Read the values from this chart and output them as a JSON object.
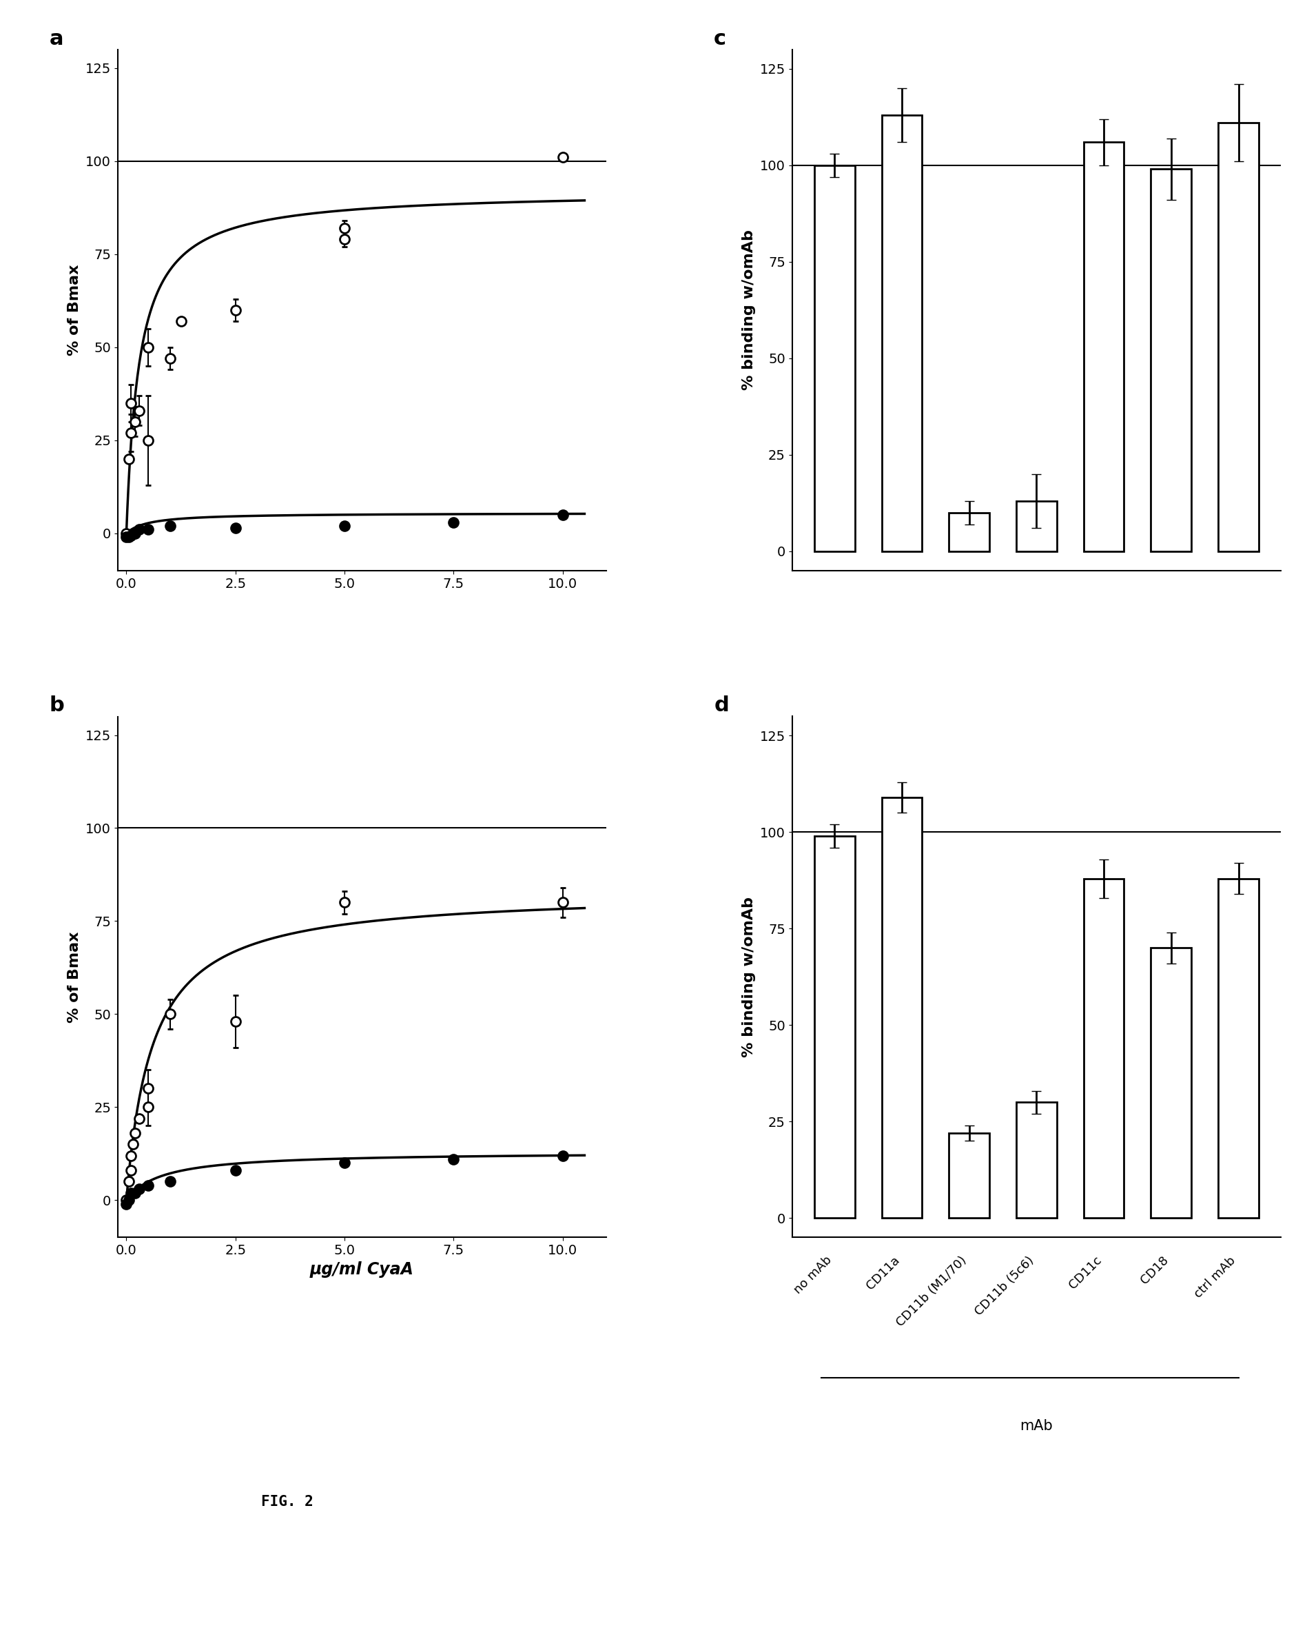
{
  "panel_a": {
    "label": "a",
    "open_x": [
      0.0,
      0.05,
      0.1,
      0.1,
      0.2,
      0.3,
      0.5,
      0.5,
      1.0,
      1.25,
      2.5,
      5.0,
      5.0,
      10.0
    ],
    "open_y": [
      0,
      20,
      27,
      35,
      30,
      33,
      25,
      50,
      47,
      57,
      60,
      82,
      79,
      101
    ],
    "open_yerr": [
      0,
      0,
      5,
      5,
      4,
      4,
      12,
      5,
      3,
      0,
      3,
      2,
      2,
      0
    ],
    "filled_x": [
      0.0,
      0.05,
      0.1,
      0.2,
      0.3,
      0.5,
      1.0,
      2.5,
      5.0,
      7.5,
      10.0
    ],
    "filled_y": [
      -1,
      -1,
      -0.5,
      0,
      1,
      1,
      2,
      1.5,
      2,
      3,
      5
    ],
    "filled_yerr": [
      0,
      0,
      0,
      0,
      0,
      0,
      0,
      0,
      0,
      0,
      0
    ],
    "bmax_open": 92,
    "kd_open": 0.3,
    "bmax_filled": 5.5,
    "kd_filled": 0.5,
    "hline_y": 100,
    "ylabel": "% of Bmax",
    "ylim": [
      -10,
      130
    ],
    "xlim": [
      -0.2,
      11
    ],
    "yticks": [
      0,
      25,
      50,
      75,
      100,
      125
    ],
    "xticks": [
      0.0,
      2.5,
      5.0,
      7.5,
      10.0
    ]
  },
  "panel_b": {
    "label": "b",
    "open_x": [
      0.0,
      0.05,
      0.1,
      0.1,
      0.15,
      0.2,
      0.3,
      0.5,
      0.5,
      1.0,
      2.5,
      5.0,
      10.0
    ],
    "open_y": [
      0,
      5,
      8,
      12,
      15,
      18,
      22,
      25,
      30,
      50,
      48,
      80,
      80
    ],
    "open_yerr": [
      0,
      0,
      0,
      0,
      0,
      0,
      0,
      5,
      5,
      4,
      7,
      3,
      4
    ],
    "filled_x": [
      0.0,
      0.05,
      0.1,
      0.2,
      0.3,
      0.5,
      1.0,
      2.5,
      5.0,
      7.5,
      10.0
    ],
    "filled_y": [
      -1,
      0,
      2,
      2,
      3,
      4,
      5,
      8,
      10,
      11,
      12
    ],
    "filled_yerr": [
      0,
      0,
      0,
      0,
      0,
      0,
      0,
      0,
      0,
      0,
      0
    ],
    "bmax_open": 83,
    "kd_open": 0.6,
    "bmax_filled": 13,
    "kd_filled": 0.8,
    "hline_y": 100,
    "ylabel": "% of Bmax",
    "ylim": [
      -10,
      130
    ],
    "xlim": [
      -0.2,
      11
    ],
    "yticks": [
      0,
      25,
      50,
      75,
      100,
      125
    ],
    "xticks": [
      0.0,
      2.5,
      5.0,
      7.5,
      10.0
    ],
    "xlabel": "μg/ml CyaA"
  },
  "panel_c": {
    "label": "c",
    "categories": [
      "no mAb",
      "CD11a",
      "CD11b (M1/70)",
      "CD11b (5c6)",
      "CD11c",
      "CD18",
      "ctrl mAb"
    ],
    "values": [
      100,
      113,
      10,
      13,
      106,
      99,
      111
    ],
    "errors": [
      3,
      7,
      3,
      7,
      6,
      8,
      10
    ],
    "hline_y": 100,
    "ylabel": "% binding w/omAb",
    "ylim": [
      -5,
      130
    ],
    "yticks": [
      0,
      25,
      50,
      75,
      100,
      125
    ]
  },
  "panel_d": {
    "label": "d",
    "categories": [
      "no mAb",
      "CD11a",
      "CD11b (M1/70)",
      "CD11b (5c6)",
      "CD11c",
      "CD18",
      "ctrl mAb"
    ],
    "values": [
      99,
      109,
      22,
      30,
      88,
      70,
      88
    ],
    "errors": [
      3,
      4,
      2,
      3,
      5,
      4,
      4
    ],
    "hline_y": 100,
    "ylabel": "% binding w/omAb",
    "ylim": [
      -5,
      130
    ],
    "yticks": [
      0,
      25,
      50,
      75,
      100,
      125
    ]
  },
  "fig_label": "FIG. 2",
  "mab_label": "mAb",
  "background_color": "#ffffff",
  "bar_color": "#ffffff",
  "bar_edgecolor": "#000000",
  "line_color": "#000000",
  "open_marker_color": "#ffffff",
  "filled_marker_color": "#000000"
}
